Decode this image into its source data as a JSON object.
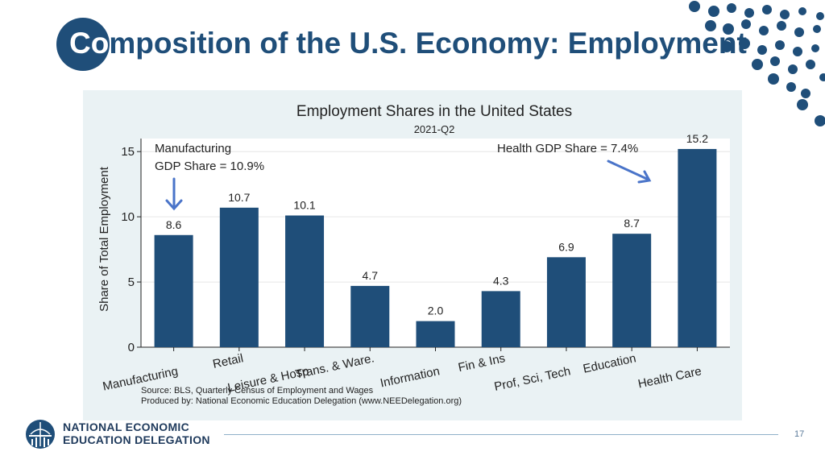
{
  "slide": {
    "title_first": "Co",
    "title_rest": "mposition of the U.S. Economy: Employment",
    "page_number": "17",
    "org_line1": "NATIONAL ECONOMIC",
    "org_line2": "EDUCATION DELEGATION"
  },
  "annotations": {
    "manufacturing_line1": "Manufacturing",
    "manufacturing_line2": "GDP Share = 10.9%",
    "health": "Health GDP Share = 7.4%"
  },
  "colors": {
    "accent": "#1f4e79",
    "bar": "#1f4e79",
    "arrow": "#4a74c9",
    "dots": "#1f4e79"
  },
  "chart_data": {
    "type": "bar",
    "title": "Employment Shares in the United States",
    "subtitle": "2021-Q2",
    "xlabel": "",
    "ylabel": "Share of Total Employment",
    "ylim": [
      0,
      16
    ],
    "yticks": [
      0,
      5,
      10,
      15
    ],
    "grid": true,
    "categories": [
      "Manufacturing",
      "Retail",
      "Leisure & Hosp",
      "Trans. & Ware.",
      "Information",
      "Fin & Ins",
      "Prof, Sci, Tech",
      "Education",
      "Health Care"
    ],
    "values": [
      8.6,
      10.7,
      10.1,
      4.7,
      2.0,
      4.3,
      6.9,
      8.7,
      15.2
    ],
    "value_labels": [
      "8.6",
      "10.7",
      "10.1",
      "4.7",
      "2.0",
      "4.3",
      "6.9",
      "8.7",
      "15.2"
    ],
    "source_line1": "Source: BLS, Quarterly Census of Employment and Wages",
    "source_line2": "Produced by: National Economic Education Delegation (www.NEEDelegation.org)"
  }
}
